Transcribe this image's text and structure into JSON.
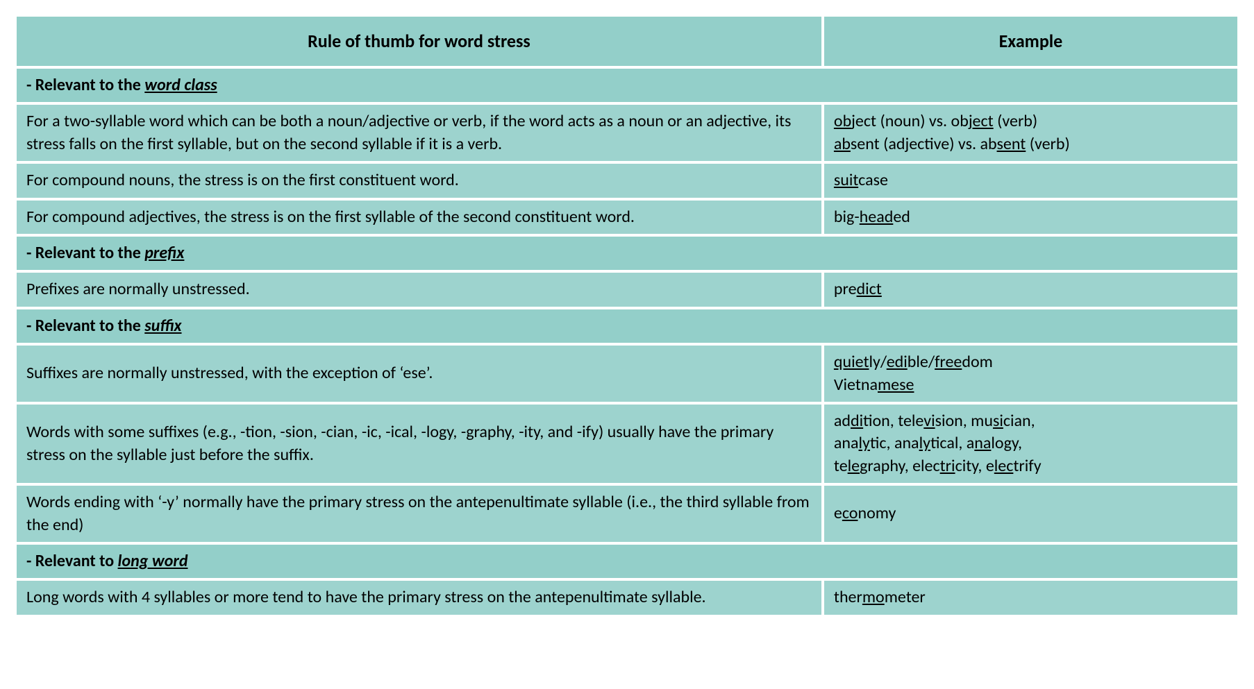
{
  "table": {
    "background_cell": "#9dd3ce",
    "background_header": "#93cfc9",
    "border_color": "#ffffff",
    "text_color": "#000000",
    "font_family": "Calibri",
    "font_size_pt": 18,
    "header_font_size_pt": 20,
    "column_widths_pct": [
      66,
      34
    ],
    "headers": {
      "rule": "Rule of thumb for word stress",
      "example": "Example"
    },
    "sections": [
      {
        "title_prefix": "- Relevant to the ",
        "title_keyword": "word class",
        "rows": [
          {
            "rule": "For a two-syllable word which can be both a noun/adjective or verb, if the word acts as a noun or an adjective, its stress falls on the first syllable, but on the second syllable if it is a verb.",
            "example_segments": [
              {
                "t": "ob",
                "u": true
              },
              {
                "t": "ject (noun) vs. ob"
              },
              {
                "t": "ject",
                "u": true
              },
              {
                "t": " (verb)"
              },
              {
                "br": true
              },
              {
                "t": "ab",
                "u": true
              },
              {
                "t": "sent (adjective) vs. ab"
              },
              {
                "t": "sent",
                "u": true
              },
              {
                "t": " (verb)"
              }
            ]
          },
          {
            "rule": "For compound nouns, the stress is on the first constituent word.",
            "example_segments": [
              {
                "t": "suit",
                "u": true
              },
              {
                "t": "case"
              }
            ]
          },
          {
            "rule": "For compound adjectives, the stress is on the first syllable of the second constituent word.",
            "example_segments": [
              {
                "t": "big-"
              },
              {
                "t": "head",
                "u": true
              },
              {
                "t": "ed"
              }
            ]
          }
        ]
      },
      {
        "title_prefix": "- Relevant to the ",
        "title_keyword": "prefix",
        "rows": [
          {
            "rule": "Prefixes are normally unstressed.",
            "example_segments": [
              {
                "t": "pre"
              },
              {
                "t": "dict",
                "u": true
              }
            ]
          }
        ]
      },
      {
        "title_prefix": "- Relevant to the ",
        "title_keyword": "suffix",
        "rows": [
          {
            "rule": "Suffixes are normally unstressed, with the exception of ‘ese’.",
            "example_segments": [
              {
                "t": "quiet",
                "u": true
              },
              {
                "t": "ly/"
              },
              {
                "t": "edi",
                "u": true
              },
              {
                "t": "ble/"
              },
              {
                "t": "free",
                "u": true
              },
              {
                "t": "dom"
              },
              {
                "br": true
              },
              {
                "t": "Vietna"
              },
              {
                "t": "mese",
                "u": true
              }
            ]
          },
          {
            "rule": "Words with some suffixes (e.g., -tion, -sion, -cian, -ic, -ical, -logy, -graphy, -ity, and -ify) usually have the primary stress on the syllable just before the suffix.",
            "example_segments": [
              {
                "t": "ad"
              },
              {
                "t": "di",
                "u": true
              },
              {
                "t": "tion, tele"
              },
              {
                "t": "vi",
                "u": true
              },
              {
                "t": "sion, mu"
              },
              {
                "t": "si",
                "u": true
              },
              {
                "t": "cian,"
              },
              {
                "br": true
              },
              {
                "t": "ana"
              },
              {
                "t": "ly",
                "u": true
              },
              {
                "t": "tic, ana"
              },
              {
                "t": "ly",
                "u": true
              },
              {
                "t": "tical, a"
              },
              {
                "t": "na",
                "u": true
              },
              {
                "t": "logy,"
              },
              {
                "br": true
              },
              {
                "t": "te"
              },
              {
                "t": "le",
                "u": true
              },
              {
                "t": "graphy, elec"
              },
              {
                "t": "tri",
                "u": true
              },
              {
                "t": "city, e"
              },
              {
                "t": "lec",
                "u": true
              },
              {
                "t": "trify"
              }
            ]
          },
          {
            "rule": "Words ending with ‘-y’ normally have the primary stress on the antepenultimate syllable (i.e., the third syllable from the end)",
            "example_segments": [
              {
                "t": "e"
              },
              {
                "t": "co",
                "u": true
              },
              {
                "t": "nomy"
              }
            ]
          }
        ]
      },
      {
        "title_prefix": "- Relevant to ",
        "title_keyword": "long word",
        "rows": [
          {
            "rule": "Long words with 4 syllables or more tend to have the primary stress on the antepenultimate syllable.",
            "example_segments": [
              {
                "t": "ther"
              },
              {
                "t": "mo",
                "u": true
              },
              {
                "t": "meter"
              }
            ]
          }
        ]
      }
    ]
  }
}
